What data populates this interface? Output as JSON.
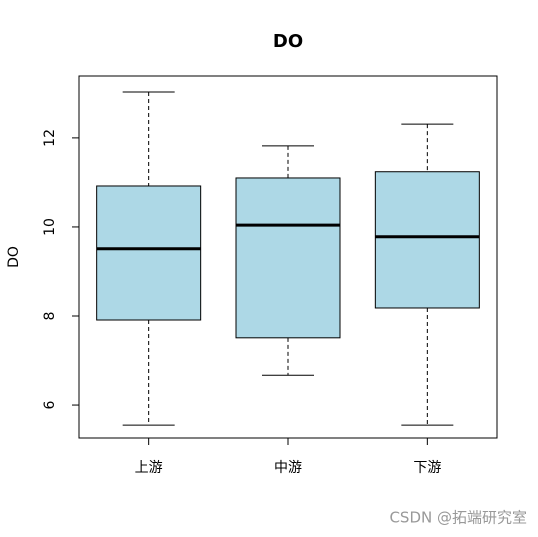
{
  "chart_data": {
    "type": "boxplot",
    "title": "DO",
    "y_label": "DO",
    "categories": [
      "上游",
      "中游",
      "下游"
    ],
    "boxes": [
      {
        "whislo": 5.55,
        "q1": 7.91,
        "med": 9.51,
        "q3": 10.92,
        "whishi": 13.03
      },
      {
        "whislo": 6.67,
        "q1": 7.51,
        "med": 10.04,
        "q3": 11.1,
        "whishi": 11.82
      },
      {
        "whislo": 5.55,
        "q1": 8.18,
        "med": 9.78,
        "q3": 11.24,
        "whishi": 12.31
      }
    ],
    "color": "#add8e6",
    "ylim": [
      5.26,
      13.39
    ],
    "yticks": [
      6,
      8,
      10,
      12
    ],
    "watermark": "CSDN @拓端研究室"
  }
}
